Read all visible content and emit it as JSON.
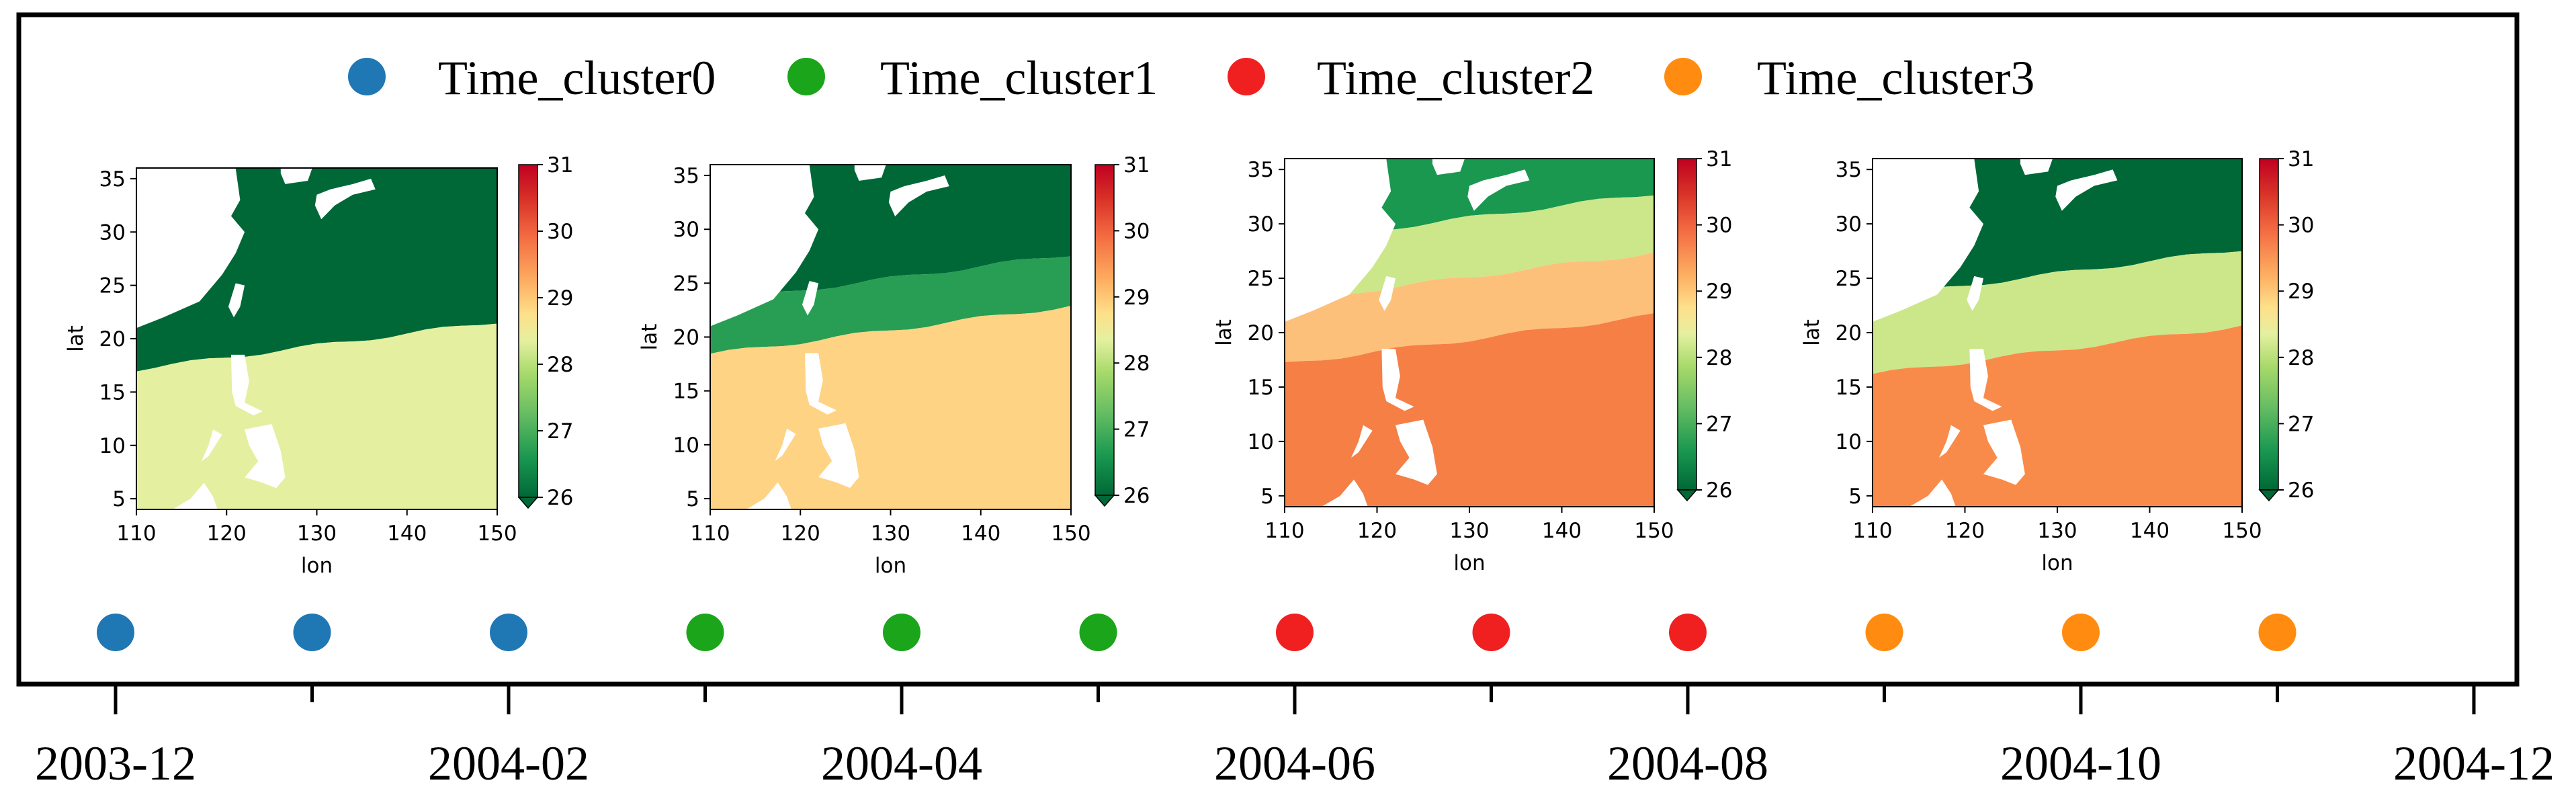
{
  "legend": {
    "items": [
      {
        "label": "Time_cluster0",
        "color": "#1f77b4"
      },
      {
        "label": "Time_cluster1",
        "color": "#1aa51a"
      },
      {
        "label": "Time_cluster2",
        "color": "#f02020"
      },
      {
        "label": "Time_cluster3",
        "color": "#ff8c10"
      }
    ]
  },
  "chart_data": {
    "type": "scatter",
    "title": "",
    "xlabel": "",
    "x_tick_labels": [
      "2003-12",
      "2004-02",
      "2004-04",
      "2004-06",
      "2004-08",
      "2004-10",
      "2004-12"
    ],
    "x_range": [
      "2003-12",
      "2004-12"
    ],
    "timeline_points": [
      {
        "month": "2003-12",
        "cluster": 0
      },
      {
        "month": "2004-01",
        "cluster": 0
      },
      {
        "month": "2004-02",
        "cluster": 0
      },
      {
        "month": "2004-03",
        "cluster": 1
      },
      {
        "month": "2004-04",
        "cluster": 1
      },
      {
        "month": "2004-05",
        "cluster": 1
      },
      {
        "month": "2004-06",
        "cluster": 2
      },
      {
        "month": "2004-07",
        "cluster": 2
      },
      {
        "month": "2004-08",
        "cluster": 2
      },
      {
        "month": "2004-09",
        "cluster": 3
      },
      {
        "month": "2004-10",
        "cluster": 3
      },
      {
        "month": "2004-11",
        "cluster": 3
      }
    ],
    "maps": [
      {
        "cluster": "Time_cluster0",
        "dominant_values": [
          26,
          28
        ]
      },
      {
        "cluster": "Time_cluster1",
        "dominant_values": [
          26,
          27,
          28.7
        ]
      },
      {
        "cluster": "Time_cluster2",
        "dominant_values": [
          26.5,
          28,
          29,
          30
        ]
      },
      {
        "cluster": "Time_cluster3",
        "dominant_values": [
          26,
          28,
          30
        ]
      }
    ],
    "map_axes": {
      "xlabel": "lon",
      "ylabel": "lat",
      "x_ticks": [
        110,
        120,
        130,
        140,
        150
      ],
      "y_ticks": [
        5,
        10,
        15,
        20,
        25,
        30,
        35
      ],
      "xlim": [
        110,
        150
      ],
      "ylim": [
        4,
        36
      ]
    },
    "colorbar": {
      "range": [
        26,
        31
      ],
      "ticks": [
        26,
        27,
        28,
        29,
        30,
        31
      ],
      "colormap": "RdYlGn_r"
    }
  }
}
